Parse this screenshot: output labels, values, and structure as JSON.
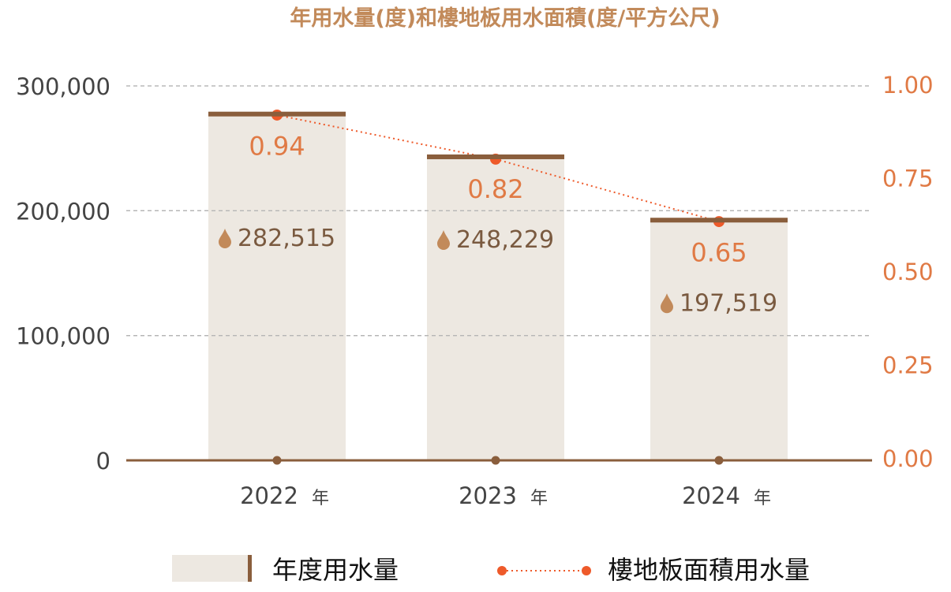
{
  "chart_data": {
    "type": "bar",
    "title": "年用水量(度)和樓地板用水面積(度/平方公尺)",
    "categories": [
      "2022",
      "2023",
      "2024"
    ],
    "category_suffix": "年",
    "series": [
      {
        "name": "年度用水量",
        "type": "bar",
        "axis": "left",
        "values": [
          282515,
          248229,
          197519
        ],
        "labels": [
          "282,515",
          "248,229",
          "197,519"
        ]
      },
      {
        "name": "樓地板面積用水量",
        "type": "line",
        "axis": "right",
        "values": [
          0.94,
          0.82,
          0.65
        ],
        "labels": [
          "0.94",
          "0.82",
          "0.65"
        ]
      }
    ],
    "left_axis": {
      "ylim": [
        0,
        300000
      ],
      "ticks": [
        "0",
        "100,000",
        "200,000",
        "300,000"
      ],
      "tick_values": [
        0,
        100000,
        200000,
        300000
      ]
    },
    "right_axis": {
      "ylim": [
        0,
        1
      ],
      "ticks": [
        "0.00",
        "0.25",
        "0.50",
        "0.75",
        "1.00"
      ],
      "tick_values": [
        0,
        0.25,
        0.5,
        0.75,
        1
      ]
    },
    "grid": true,
    "legend_position": "bottom",
    "colors": {
      "bar": "#ede8e1",
      "bar_top": "#8a5e3c",
      "line": "#ee5a2a",
      "title": "#c28a5a",
      "value_label": "#e07a45",
      "count_label": "#7a5a40",
      "drop": "#c28a5a",
      "axis": "#8a5e3c",
      "right_tick": "#e07a45"
    }
  }
}
